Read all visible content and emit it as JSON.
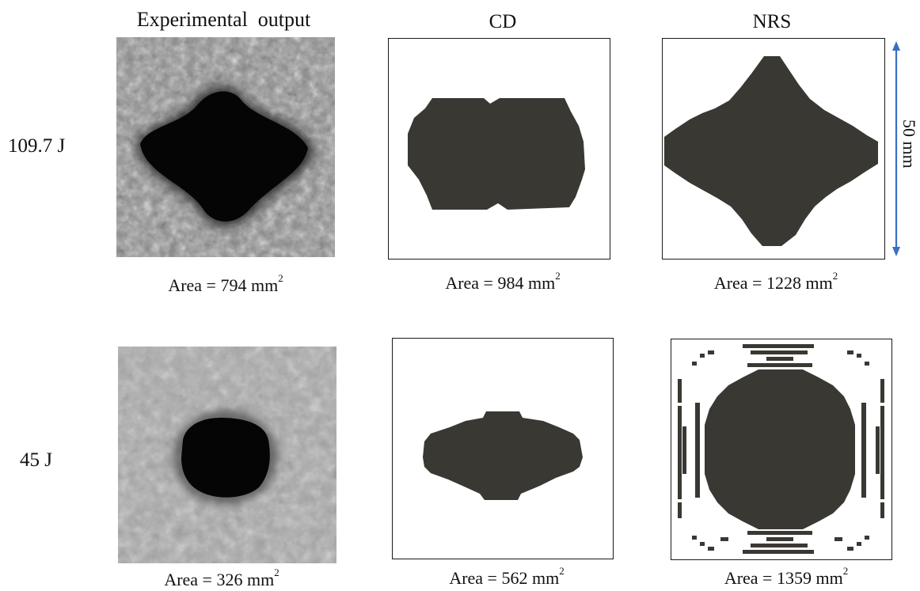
{
  "columns": {
    "experimental": "Experimental  output",
    "cd": "CD",
    "nrs": "NRS"
  },
  "rows": [
    {
      "energy": "109.7 J",
      "experimental_area": {
        "prefix": "Area = 794 mm",
        "sup": "2"
      },
      "cd_area": {
        "prefix": "Area = 984 mm",
        "sup": "2"
      },
      "nrs_area": {
        "prefix": "Area = 1228 mm",
        "sup": "2"
      }
    },
    {
      "energy": "45 J",
      "experimental_area": {
        "prefix": "Area = 326 mm",
        "sup": "2"
      },
      "cd_area": {
        "prefix": "Area = 562 mm",
        "sup": "2"
      },
      "nrs_area": {
        "prefix": "Area = 1359 mm",
        "sup": "2"
      }
    }
  ],
  "scale_bar": {
    "label": "50 mm",
    "color": "#3b6fc4"
  },
  "colors": {
    "damage": "#3a3833",
    "photo_damage": "#0a0a0a"
  }
}
